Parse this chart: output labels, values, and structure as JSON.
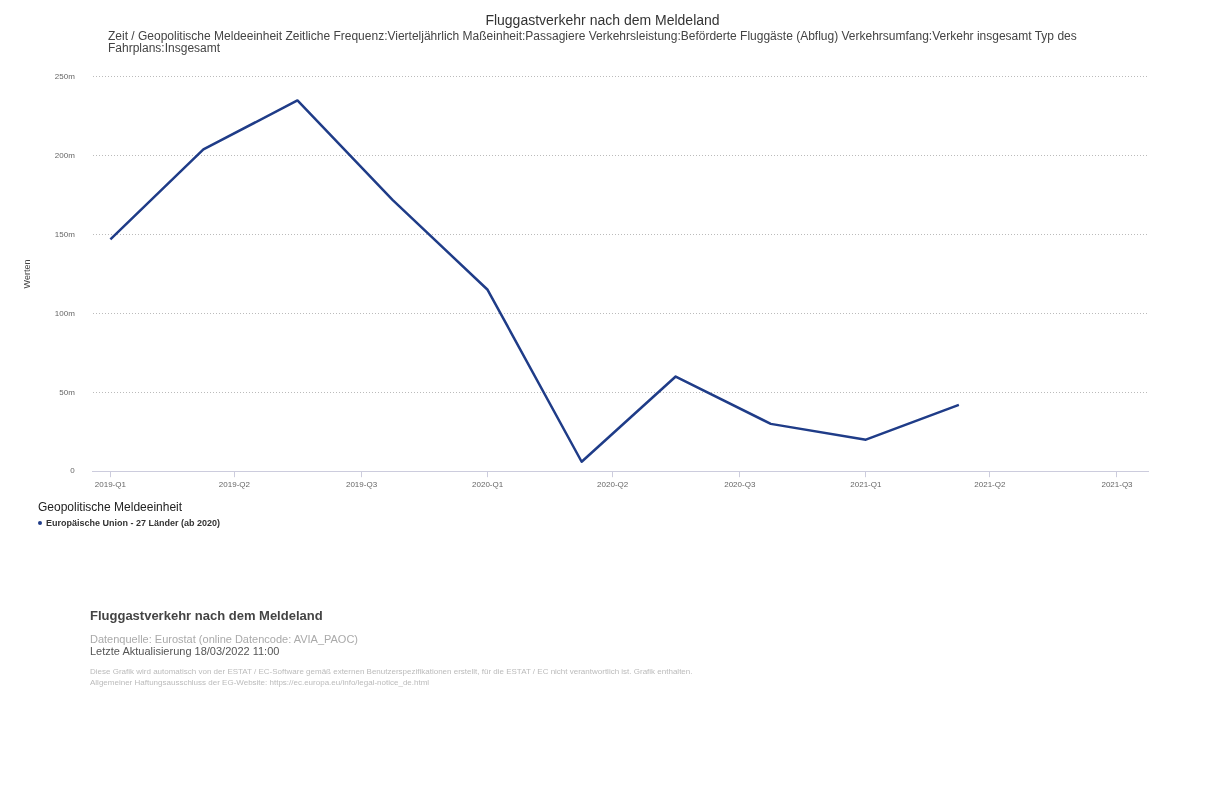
{
  "chart_data": {
    "type": "line",
    "title": "Fluggastverkehr nach dem Meldeland",
    "subtitle": "Zeit / Geopolitische Meldeeinheit  Zeitliche Frequenz:Vierteljährlich  Maßeinheit:Passagiere  Verkehrsleistung:Beförderte Fluggäste (Abflug)  Verkehrsumfang:Verkehr insgesamt  Typ des Fahrplans:Insgesamt",
    "ylabel": "Werten",
    "legend_title": "Geopolitische Meldeeinheit",
    "legend": "bottom",
    "grid": "y",
    "x": [
      "2019-01",
      "2019-04",
      "2019-07",
      "2019-10",
      "2020-01",
      "2020-04",
      "2020-07",
      "2020-10",
      "2021-01",
      "2021-04"
    ],
    "series": [
      {
        "name": "Europäische Union - 27 Länder (ab 2020)",
        "color": "#1f3c88",
        "values": [
          147,
          204,
          235,
          172,
          115,
          6,
          60,
          30,
          20,
          42
        ]
      }
    ],
    "xlim": [
      "2018-12-15",
      "2021-10-01"
    ],
    "xticks": [
      {
        "value": "2019-01",
        "label": "2019-Q1"
      },
      {
        "value": "2019-05",
        "label": "2019-Q2"
      },
      {
        "value": "2019-09",
        "label": "2019-Q3"
      },
      {
        "value": "2020-01",
        "label": "2020-Q1"
      },
      {
        "value": "2020-05",
        "label": "2020-Q2"
      },
      {
        "value": "2020-09",
        "label": "2020-Q3"
      },
      {
        "value": "2021-01",
        "label": "2021-Q1"
      },
      {
        "value": "2021-05",
        "label": "2021-Q2"
      },
      {
        "value": "2021-09",
        "label": "2021-Q3"
      }
    ],
    "ylim": [
      0,
      250
    ],
    "yticks": [
      0,
      {
        "value": 50,
        "label": "50m"
      },
      {
        "value": 100,
        "label": "100m"
      },
      {
        "value": 150,
        "label": "150m"
      },
      {
        "value": 200,
        "label": "200m"
      },
      {
        "value": 250,
        "label": "250m"
      }
    ],
    "annotations": [
      "Fluggastverkehr nach dem Meldeland",
      "Datenquelle: Eurostat (online Datencode: AVIA_PAOC)",
      "Letzte Aktualisierung 18/03/2022 11:00",
      "Diese Grafik wird automatisch von der ESTAT / EC-Software gemäß externen Benutzerspezifikationen erstellt, für die ESTAT / EC nicht verantwortlich ist. Grafik enthalten.",
      "Allgemeiner Haftungsausschluss der EG-Website: https://ec.europa.eu/info/legal-notice_de.html"
    ]
  }
}
